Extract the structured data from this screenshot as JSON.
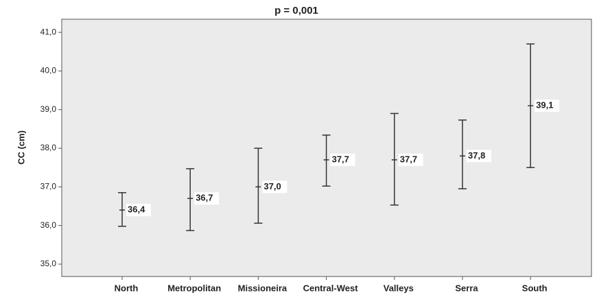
{
  "chart_data": {
    "type": "errorbar",
    "title": "p = 0,001",
    "y_label": "CC (cm)",
    "categories": [
      "North",
      "Metropolitan",
      "Missioneira",
      "Central-West",
      "Valleys",
      "Serra",
      "South"
    ],
    "values": [
      36.4,
      36.7,
      37.0,
      37.7,
      37.7,
      37.8,
      39.1
    ],
    "value_labels": [
      "36,4",
      "36,7",
      "37,0",
      "37,7",
      "37,7",
      "37,8",
      "39,1"
    ],
    "lower": [
      35.98,
      35.87,
      36.06,
      37.02,
      36.53,
      36.95,
      37.5
    ],
    "upper": [
      36.85,
      37.47,
      38.0,
      38.34,
      38.9,
      38.73,
      40.7
    ],
    "color": "#333333",
    "ylim": [
      34.68,
      41.34
    ],
    "yticks": [
      {
        "value": 35,
        "label": "35,0"
      },
      {
        "value": 36,
        "label": "36,0"
      },
      {
        "value": 37,
        "label": "37,0"
      },
      {
        "value": 38,
        "label": "38,0"
      },
      {
        "value": 39,
        "label": "39,0"
      },
      {
        "value": 40,
        "label": "40,0"
      },
      {
        "value": 41,
        "label": "41,0"
      }
    ]
  }
}
